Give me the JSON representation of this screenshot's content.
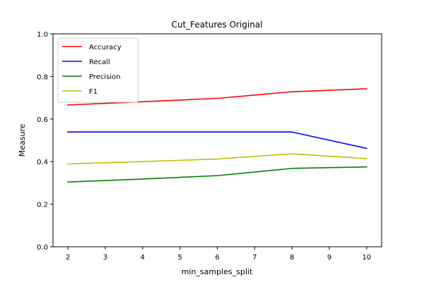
{
  "chart_data": {
    "type": "line",
    "title": "Cut_Features Original",
    "xlabel": "min_samples_split",
    "ylabel": "Measure",
    "x": [
      2,
      4,
      6,
      8,
      10
    ],
    "xlim": [
      1.6,
      10.4
    ],
    "ylim": [
      0.0,
      1.0
    ],
    "xticks": [
      "2",
      "3",
      "4",
      "5",
      "6",
      "7",
      "8",
      "9",
      "10"
    ],
    "yticks": [
      "0.0",
      "0.2",
      "0.4",
      "0.6",
      "0.8",
      "1.0"
    ],
    "grid": false,
    "legend_position": "top-left",
    "series": [
      {
        "name": "Accuracy",
        "color": "#ff0000",
        "values": [
          0.666,
          0.681,
          0.697,
          0.728,
          0.742
        ]
      },
      {
        "name": "Recall",
        "color": "#0000ff",
        "values": [
          0.539,
          0.539,
          0.539,
          0.539,
          0.462
        ]
      },
      {
        "name": "Precision",
        "color": "#008000",
        "values": [
          0.304,
          0.318,
          0.334,
          0.368,
          0.375
        ]
      },
      {
        "name": "F1",
        "color": "#bfbf00",
        "values": [
          0.389,
          0.4,
          0.412,
          0.437,
          0.414
        ]
      }
    ]
  }
}
